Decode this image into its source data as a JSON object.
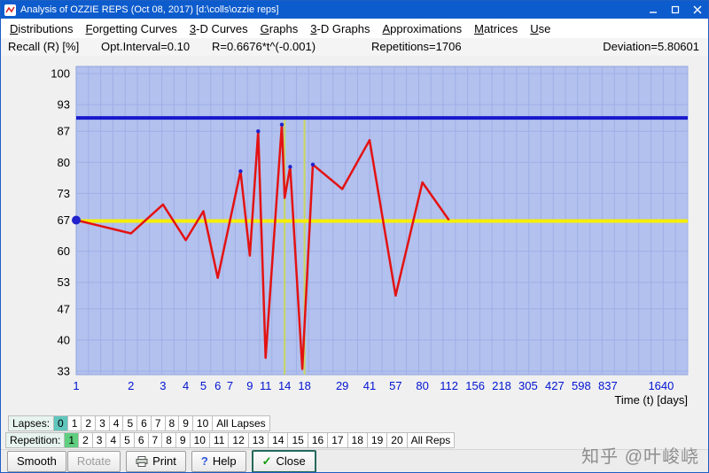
{
  "window": {
    "title": "Analysis of OZZIE REPS (Oct 08, 2017) [d:\\colls\\ozzie reps]"
  },
  "menu": {
    "items": [
      {
        "label": "Distributions"
      },
      {
        "label": "Forgetting Curves"
      },
      {
        "label": "3-D Curves"
      },
      {
        "label": "Graphs"
      },
      {
        "label": "3-D Graphs"
      },
      {
        "label": "Approximations"
      },
      {
        "label": "Matrices"
      },
      {
        "label": "Use"
      }
    ]
  },
  "info": {
    "recall_label": "Recall (R) [%]",
    "opt_interval": "Opt.Interval=0.10",
    "formula": "R=0.6676*t^(-0.001)",
    "repetitions": "Repetitions=1706",
    "deviation": "Deviation=5.80601"
  },
  "chart_data": {
    "type": "line",
    "x_scale": "log",
    "xlabel": "Time (t) [days]",
    "ylabel": "Recall (R) [%]",
    "xlim": [
      1,
      2300
    ],
    "ylim": [
      33,
      100
    ],
    "yticks": [
      100,
      93,
      87,
      80,
      73,
      67,
      60,
      53,
      47,
      40,
      33
    ],
    "xticks": [
      1,
      2,
      3,
      4,
      5,
      6,
      7,
      9,
      11,
      14,
      18,
      29,
      41,
      57,
      80,
      112,
      156,
      218,
      305,
      427,
      598,
      837,
      1640
    ],
    "grid": true,
    "plot_bg": "#b3c1ee",
    "grid_color": "#9dafe6",
    "tick_label_color": "#0014d2",
    "axis_text_color": "#000000",
    "series": [
      {
        "name": "measured-recall",
        "type": "line",
        "color": "#e31212",
        "points": [
          [
            1,
            67
          ],
          [
            2,
            64
          ],
          [
            3,
            70.5
          ],
          [
            4,
            62.5
          ],
          [
            5,
            69
          ],
          [
            6,
            54
          ],
          [
            8,
            78
          ],
          [
            9,
            59
          ],
          [
            10,
            87
          ],
          [
            11,
            36
          ],
          [
            13.5,
            88.5
          ],
          [
            14,
            72
          ],
          [
            15,
            79
          ],
          [
            17.5,
            33.5
          ],
          [
            20,
            79.5
          ],
          [
            29,
            74
          ],
          [
            41,
            85
          ],
          [
            57,
            50
          ],
          [
            80,
            75.5
          ],
          [
            112,
            67
          ]
        ]
      },
      {
        "name": "retention-target-line",
        "type": "hline",
        "color": "#1818cc",
        "y": 90
      },
      {
        "name": "recall-asymptote-line",
        "type": "hline",
        "color": "#f5ee00",
        "y": 66.8
      }
    ],
    "start_marker": {
      "point": [
        1,
        67
      ],
      "color": "#2222cc"
    },
    "vertex_markers": {
      "color": "#2222cc",
      "points": [
        [
          8,
          78
        ],
        [
          10,
          87
        ],
        [
          13.5,
          88.5
        ],
        [
          15,
          79
        ],
        [
          20,
          79.5
        ]
      ]
    },
    "cursor_lines": {
      "color": "#c9d75e",
      "x": [
        14,
        18
      ]
    }
  },
  "lapses": {
    "label": "Lapses:",
    "selected": "0",
    "options": [
      "1",
      "2",
      "3",
      "4",
      "5",
      "6",
      "7",
      "8",
      "9",
      "10"
    ],
    "all_label": "All Lapses"
  },
  "repetition": {
    "label": "Repetition:",
    "selected": "1",
    "options": [
      "2",
      "3",
      "4",
      "5",
      "6",
      "7",
      "8",
      "9",
      "10",
      "11",
      "12",
      "13",
      "14",
      "15",
      "16",
      "17",
      "18",
      "19",
      "20"
    ],
    "all_label": "All Reps"
  },
  "buttons": {
    "smooth": "Smooth",
    "rotate": "Rotate",
    "print": "Print",
    "help": "Help",
    "close": "Close"
  },
  "icons": {
    "help": "?",
    "close": "✓"
  },
  "watermark": {
    "text": "知乎 @叶峻峣"
  }
}
